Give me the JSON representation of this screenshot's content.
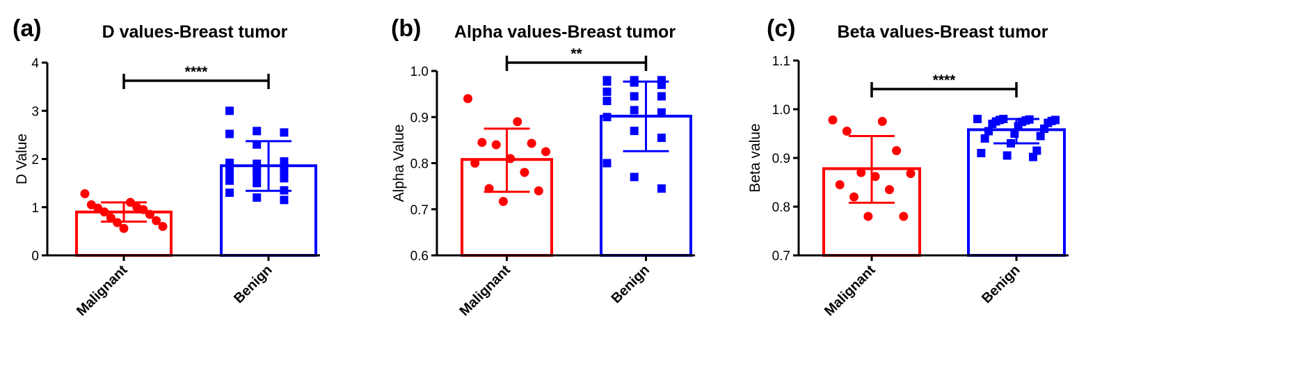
{
  "chart_data": [
    {
      "type": "bar",
      "panel_label": "(a)",
      "title": "D values-Breast tumor",
      "ylabel": "D Value",
      "ylim": [
        0,
        4
      ],
      "yticks": [
        0,
        1,
        2,
        3,
        4
      ],
      "ytick_labels": [
        "0",
        "1",
        "2",
        "3",
        "4"
      ],
      "categories": [
        "Malignant",
        "Benign"
      ],
      "colors": [
        "#ff0000",
        "#0000ff"
      ],
      "markers": [
        "circle",
        "square"
      ],
      "means": [
        0.9,
        1.86
      ],
      "sd_upper": [
        1.1,
        2.37
      ],
      "sd_lower": [
        0.7,
        1.34
      ],
      "points": [
        [
          1.28,
          1.1,
          1.05,
          1.0,
          0.98,
          0.95,
          0.9,
          0.85,
          0.78,
          0.72,
          0.68,
          0.6,
          0.56
        ],
        [
          3.0,
          2.58,
          2.55,
          2.52,
          2.3,
          1.95,
          1.92,
          1.9,
          1.85,
          1.8,
          1.75,
          1.72,
          1.68,
          1.65,
          1.6,
          1.55,
          1.5,
          1.35,
          1.3,
          1.2,
          1.15
        ]
      ],
      "significance": {
        "label": "****",
        "value": 3.65
      }
    },
    {
      "type": "bar",
      "panel_label": "(b)",
      "title": "Alpha values-Breast tumor",
      "ylabel": "Alpha Value",
      "ylim": [
        0.6,
        1.0
      ],
      "yticks": [
        0.6,
        0.7,
        0.8,
        0.9,
        1.0
      ],
      "ytick_labels": [
        "0.6",
        "0.7",
        "0.8",
        "0.9",
        "1.0"
      ],
      "categories": [
        "Malignant",
        "Benign"
      ],
      "colors": [
        "#ff0000",
        "#0000ff"
      ],
      "markers": [
        "circle",
        "square"
      ],
      "means": [
        0.808,
        0.902
      ],
      "sd_upper": [
        0.875,
        0.977
      ],
      "sd_lower": [
        0.738,
        0.826
      ],
      "points": [
        [
          0.94,
          0.89,
          0.845,
          0.843,
          0.84,
          0.825,
          0.81,
          0.8,
          0.78,
          0.745,
          0.74,
          0.717
        ],
        [
          0.98,
          0.98,
          0.98,
          0.978,
          0.978,
          0.977,
          0.977,
          0.975,
          0.97,
          0.955,
          0.945,
          0.945,
          0.935,
          0.915,
          0.91,
          0.9,
          0.87,
          0.855,
          0.8,
          0.77,
          0.745
        ]
      ],
      "significance": {
        "label": "**",
        "value": 1.02
      }
    },
    {
      "type": "bar",
      "panel_label": "(c)",
      "title": "Beta values-Breast tumor",
      "ylabel": "Beta value",
      "ylim": [
        0.7,
        1.1
      ],
      "yticks": [
        0.7,
        0.8,
        0.9,
        1.0,
        1.1
      ],
      "ytick_labels": [
        "0.7",
        "0.8",
        "0.9",
        "1.0",
        "1.1"
      ],
      "categories": [
        "Malignant",
        "Benign"
      ],
      "colors": [
        "#ff0000",
        "#0000ff"
      ],
      "markers": [
        "circle",
        "square"
      ],
      "means": [
        0.878,
        0.958
      ],
      "sd_upper": [
        0.945,
        0.98
      ],
      "sd_lower": [
        0.808,
        0.93
      ],
      "points": [
        [
          0.978,
          0.975,
          0.955,
          0.915,
          0.87,
          0.868,
          0.862,
          0.845,
          0.835,
          0.82,
          0.78,
          0.78
        ],
        [
          0.98,
          0.98,
          0.979,
          0.978,
          0.978,
          0.977,
          0.976,
          0.975,
          0.974,
          0.972,
          0.97,
          0.965,
          0.96,
          0.955,
          0.95,
          0.945,
          0.94,
          0.93,
          0.915,
          0.91,
          0.905,
          0.902
        ]
      ],
      "significance": {
        "label": "****",
        "value": 1.04
      }
    }
  ]
}
